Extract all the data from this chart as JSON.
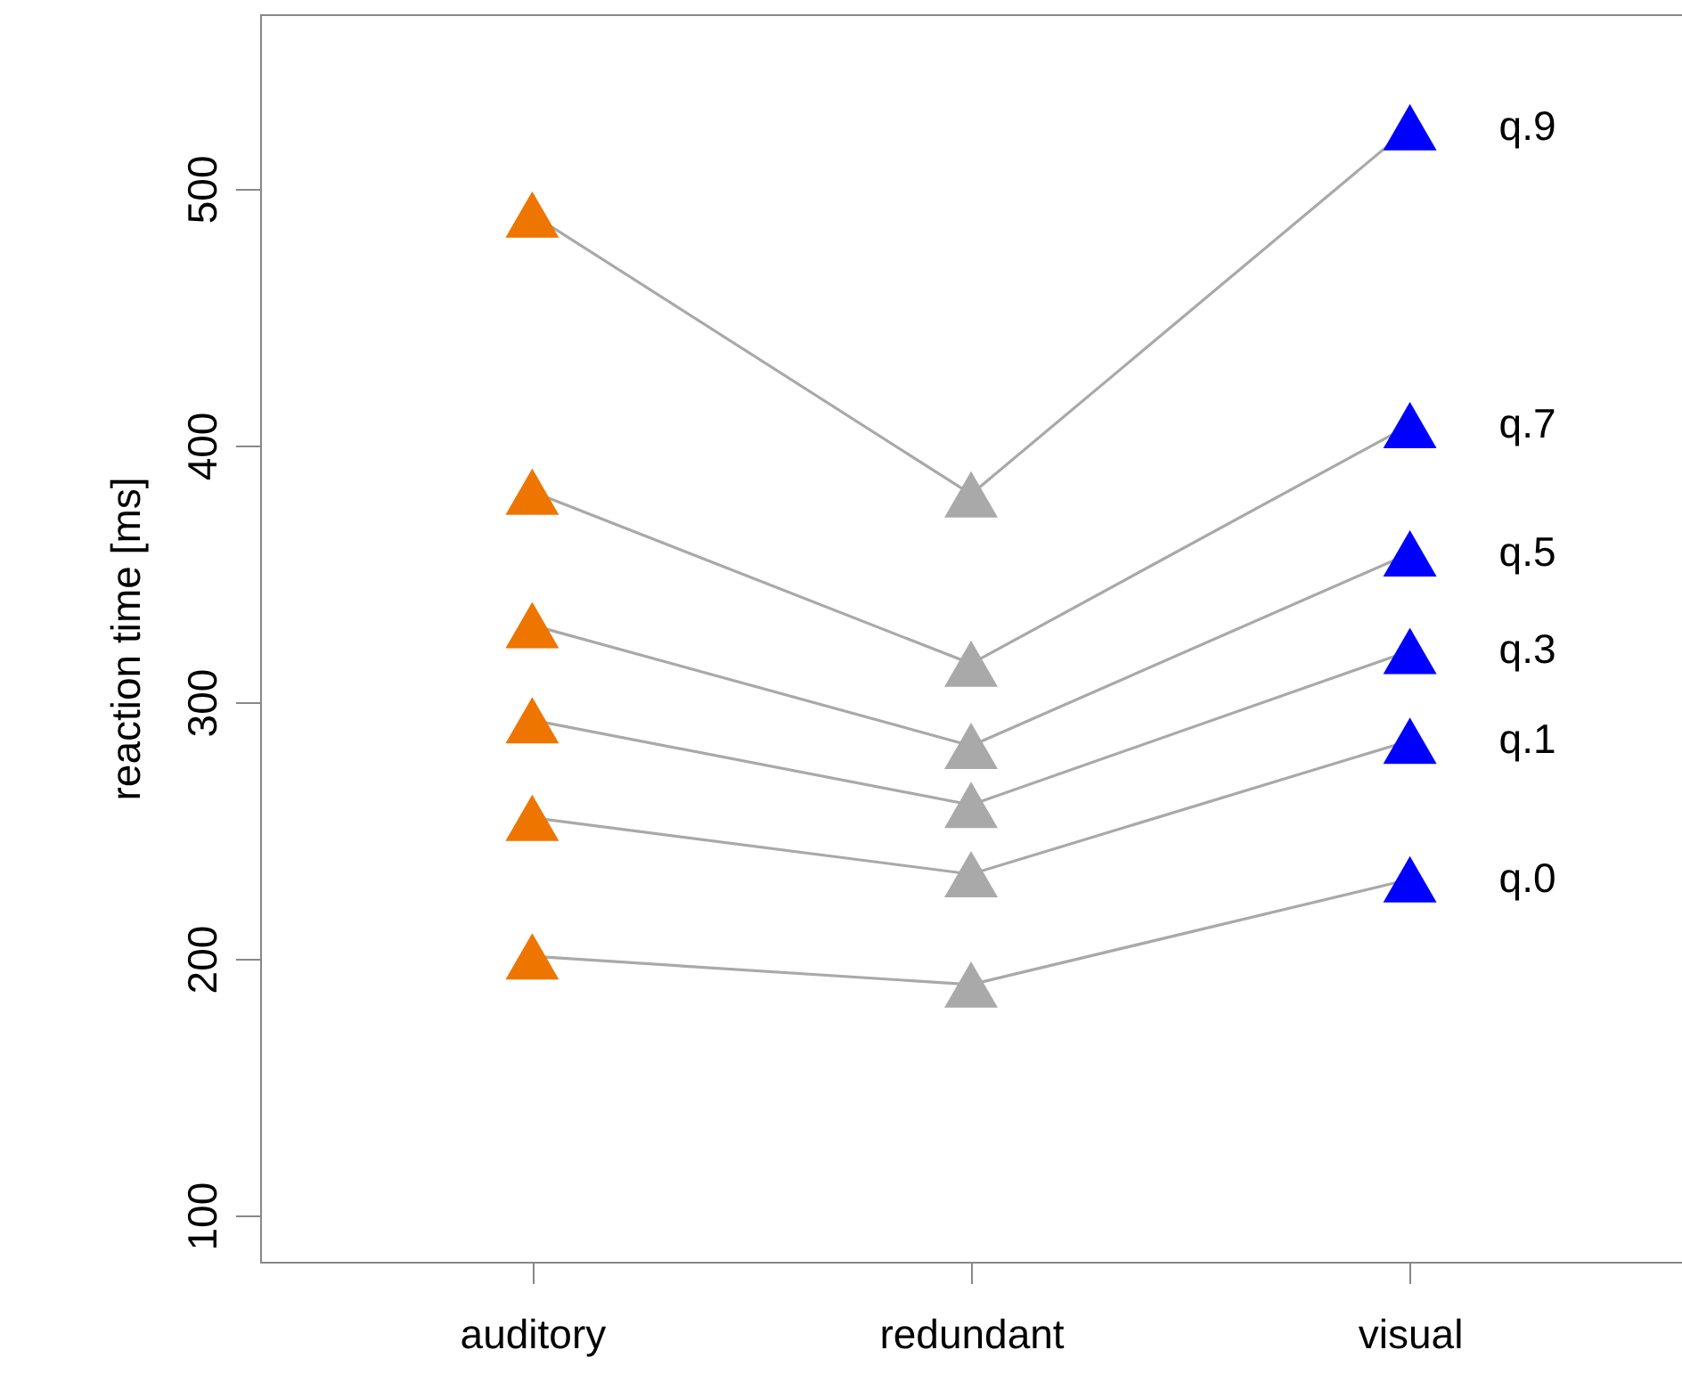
{
  "chart_data": {
    "type": "line",
    "ylabel": "reaction time [ms]",
    "categories": [
      "auditory",
      "redundant",
      "visual"
    ],
    "ylim": [
      82,
      568
    ],
    "yticks": [
      100,
      200,
      300,
      400,
      500
    ],
    "grid": false,
    "marker": "triangle",
    "line_style": "solid",
    "series": [
      {
        "name": "q.0",
        "color": "#a9a9a9",
        "colors": [
          "#ee7600",
          "#a9a9a9",
          "#0000ff"
        ],
        "values": [
          201,
          190,
          231
        ]
      },
      {
        "name": "q.1",
        "color": "#a9a9a9",
        "colors": [
          "#ee7600",
          "#a9a9a9",
          "#0000ff"
        ],
        "values": [
          255,
          233,
          285
        ]
      },
      {
        "name": "q.3",
        "color": "#a9a9a9",
        "colors": [
          "#ee7600",
          "#a9a9a9",
          "#0000ff"
        ],
        "values": [
          293,
          260,
          320
        ]
      },
      {
        "name": "q.5",
        "color": "#a9a9a9",
        "colors": [
          "#ee7600",
          "#a9a9a9",
          "#0000ff"
        ],
        "values": [
          330,
          283,
          358
        ]
      },
      {
        "name": "q.7",
        "color": "#a9a9a9",
        "colors": [
          "#ee7600",
          "#a9a9a9",
          "#0000ff"
        ],
        "values": [
          382,
          315,
          408
        ]
      },
      {
        "name": "q.9",
        "color": "#a9a9a9",
        "colors": [
          "#ee7600",
          "#a9a9a9",
          "#0000ff"
        ],
        "values": [
          490,
          381,
          524
        ]
      }
    ]
  }
}
